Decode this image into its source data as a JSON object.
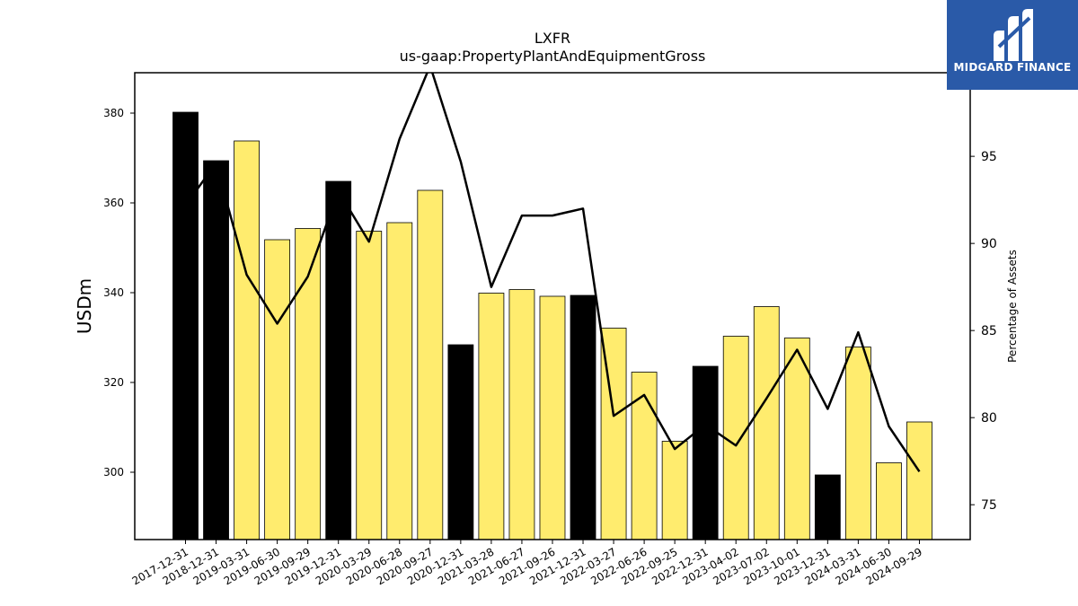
{
  "chart_data": {
    "type": "bar",
    "title": "LXFR",
    "subtitle": "us-gaap:PropertyPlantAndEquipmentGross",
    "ylabel": "USDm",
    "y2label": "Percentage of Assets",
    "ylim": [
      285,
      389
    ],
    "y2lim": [
      73,
      99.8
    ],
    "yticks": [
      300,
      320,
      340,
      360,
      380
    ],
    "y2ticks": [
      75,
      80,
      85,
      90,
      95
    ],
    "categories": [
      "2017-12-31",
      "2018-12-31",
      "2019-03-31",
      "2019-06-30",
      "2019-09-29",
      "2019-12-31",
      "2020-03-29",
      "2020-06-28",
      "2020-09-27",
      "2020-12-31",
      "2021-03-28",
      "2021-06-27",
      "2021-09-26",
      "2021-12-31",
      "2022-03-27",
      "2022-06-26",
      "2022-09-25",
      "2022-12-31",
      "2023-04-02",
      "2023-07-02",
      "2023-10-01",
      "2023-12-31",
      "2024-03-31",
      "2024-06-30",
      "2024-09-29"
    ],
    "series": [
      {
        "type": "bar",
        "values": [
          380.2,
          369.4,
          373.8,
          351.8,
          354.3,
          364.8,
          353.7,
          355.6,
          362.8,
          328.4,
          339.9,
          340.7,
          339.2,
          339.4,
          332.1,
          322.3,
          306.9,
          323.6,
          330.3,
          336.9,
          329.9,
          299.4,
          327.9,
          302.1,
          311.2
        ]
      },
      {
        "type": "line",
        "axis": "right",
        "values": [
          92.2,
          94.6,
          88.2,
          85.4,
          88.1,
          93.0,
          90.1,
          96.0,
          100.2,
          94.7,
          87.5,
          91.6,
          91.6,
          92.0,
          80.1,
          81.3,
          78.2,
          79.6,
          78.4,
          81.1,
          83.9,
          80.5,
          84.9,
          79.5,
          76.9
        ]
      }
    ],
    "colors": {
      "annual_bar": "#000000",
      "quarter_bar": "#ffec6e",
      "line": "#000000"
    },
    "annual_flags": [
      true,
      true,
      false,
      false,
      false,
      true,
      false,
      false,
      false,
      true,
      false,
      false,
      false,
      true,
      false,
      false,
      false,
      true,
      false,
      false,
      false,
      true,
      false,
      false,
      false
    ],
    "grid": false,
    "legend": "none"
  },
  "logo": {
    "text": "MIDGARD FINANCE",
    "icon": "midgard-m-logo-icon"
  }
}
